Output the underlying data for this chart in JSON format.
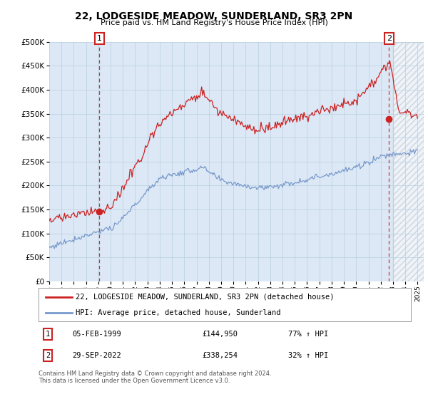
{
  "title": "22, LODGESIDE MEADOW, SUNDERLAND, SR3 2PN",
  "subtitle": "Price paid vs. HM Land Registry's House Price Index (HPI)",
  "legend_line1": "22, LODGESIDE MEADOW, SUNDERLAND, SR3 2PN (detached house)",
  "legend_line2": "HPI: Average price, detached house, Sunderland",
  "transaction1_date": "05-FEB-1999",
  "transaction1_price": "£144,950",
  "transaction1_hpi": "77% ↑ HPI",
  "transaction2_date": "29-SEP-2022",
  "transaction2_price": "£338,254",
  "transaction2_hpi": "32% ↑ HPI",
  "footer": "Contains HM Land Registry data © Crown copyright and database right 2024.\nThis data is licensed under the Open Government Licence v3.0.",
  "red_color": "#cc2222",
  "blue_color": "#7799cc",
  "background_color": "#ffffff",
  "chart_bg_color": "#dce8f5",
  "grid_color": "#b8cfe0",
  "ylim": [
    0,
    500000
  ],
  "yticks": [
    0,
    50000,
    100000,
    150000,
    200000,
    250000,
    300000,
    350000,
    400000,
    450000,
    500000
  ]
}
